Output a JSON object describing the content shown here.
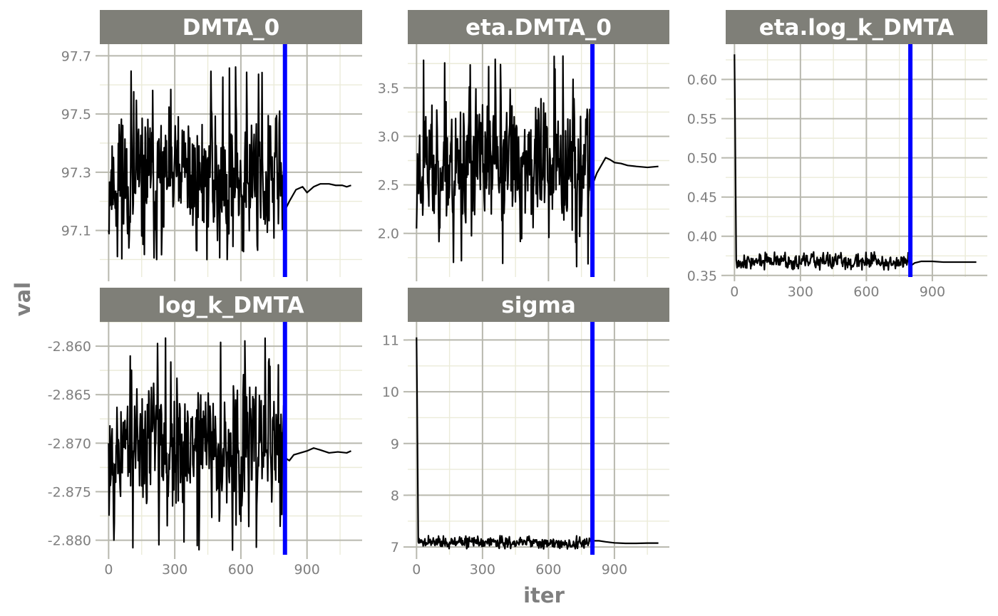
{
  "chart_data": {
    "type": "line",
    "xlabel": "iter",
    "ylabel": "val",
    "vline": {
      "x": 800,
      "color": "#0000ff"
    },
    "colors": {
      "strip_bg": "#7f7f78",
      "panel_bg": "#ffffff",
      "grid_major": "#b8b8ae",
      "grid_minor": "#ebebd9",
      "line": "#000000"
    },
    "panels": [
      {
        "name": "DMTA_0",
        "xlim": [
          -40,
          1150
        ],
        "ylim": [
          96.94,
          97.74
        ],
        "xticks": [
          0,
          300,
          600,
          900
        ],
        "xtick_labels": [],
        "yticks": [
          97.1,
          97.3,
          97.5,
          97.7
        ],
        "ytick_labels": [
          "97.1",
          "97.3",
          "97.5",
          "97.7"
        ],
        "noisy": {
          "start": 97.1,
          "mean": 97.28,
          "sd": 0.11,
          "lo": 97.0,
          "hi": 97.67,
          "end": 800,
          "seed": 11
        },
        "tail": [
          [
            800,
            97.17
          ],
          [
            820,
            97.2
          ],
          [
            850,
            97.24
          ],
          [
            880,
            97.25
          ],
          [
            900,
            97.23
          ],
          [
            930,
            97.25
          ],
          [
            960,
            97.26
          ],
          [
            1000,
            97.26
          ],
          [
            1030,
            97.255
          ],
          [
            1060,
            97.255
          ],
          [
            1080,
            97.25
          ],
          [
            1100,
            97.255
          ]
        ]
      },
      {
        "name": "eta.DMTA_0",
        "xlim": [
          -40,
          1150
        ],
        "ylim": [
          1.55,
          3.95
        ],
        "xticks": [
          0,
          300,
          600,
          900
        ],
        "xtick_labels": [],
        "yticks": [
          2.0,
          2.5,
          3.0,
          3.5
        ],
        "ytick_labels": [
          "2.0",
          "2.5",
          "3.0",
          "3.5"
        ],
        "noisy": {
          "start": 2.05,
          "mean": 2.72,
          "sd": 0.32,
          "lo": 1.62,
          "hi": 3.83,
          "end": 800,
          "seed": 23
        },
        "tail": [
          [
            800,
            2.5
          ],
          [
            820,
            2.62
          ],
          [
            840,
            2.7
          ],
          [
            860,
            2.78
          ],
          [
            880,
            2.76
          ],
          [
            900,
            2.73
          ],
          [
            930,
            2.72
          ],
          [
            960,
            2.7
          ],
          [
            1000,
            2.69
          ],
          [
            1050,
            2.68
          ],
          [
            1100,
            2.69
          ]
        ]
      },
      {
        "name": "eta.log_k_DMTA",
        "xlim": [
          -40,
          1150
        ],
        "ylim": [
          0.348,
          0.645
        ],
        "xticks": [
          0,
          300,
          600,
          900
        ],
        "xtick_labels": [
          "0",
          "300",
          "600",
          "900"
        ],
        "yticks": [
          0.35,
          0.4,
          0.45,
          0.5,
          0.55,
          0.6
        ],
        "ytick_labels": [
          "0.35",
          "0.40",
          "0.45",
          "0.50",
          "0.55",
          "0.60"
        ],
        "noisy": {
          "start": 0.632,
          "drop_to": 0.37,
          "drop_len": 8,
          "mean": 0.368,
          "sd": 0.004,
          "lo": 0.357,
          "hi": 0.38,
          "end": 800,
          "seed": 37
        },
        "tail": [
          [
            800,
            0.362
          ],
          [
            820,
            0.366
          ],
          [
            850,
            0.368
          ],
          [
            900,
            0.368
          ],
          [
            950,
            0.367
          ],
          [
            1000,
            0.367
          ],
          [
            1050,
            0.367
          ],
          [
            1100,
            0.367
          ]
        ]
      },
      {
        "name": "log_k_DMTA",
        "xlim": [
          -40,
          1150
        ],
        "ylim": [
          -2.8815,
          -2.8575
        ],
        "xticks": [
          0,
          300,
          600,
          900
        ],
        "xtick_labels": [
          "0",
          "300",
          "600",
          "900"
        ],
        "yticks": [
          -2.88,
          -2.875,
          -2.87,
          -2.865,
          -2.86
        ],
        "ytick_labels": [
          "-2.880",
          "-2.875",
          "-2.870",
          "-2.865",
          "-2.860"
        ],
        "noisy": {
          "start": -2.87,
          "mean": -2.8702,
          "sd": 0.0033,
          "lo": -2.8812,
          "hi": -2.859,
          "end": 800,
          "seed": 53
        },
        "tail": [
          [
            800,
            -2.8715
          ],
          [
            820,
            -2.8718
          ],
          [
            840,
            -2.8712
          ],
          [
            870,
            -2.871
          ],
          [
            900,
            -2.8708
          ],
          [
            930,
            -2.8705
          ],
          [
            960,
            -2.8707
          ],
          [
            1000,
            -2.871
          ],
          [
            1040,
            -2.8709
          ],
          [
            1080,
            -2.871
          ],
          [
            1100,
            -2.8708
          ]
        ]
      },
      {
        "name": "sigma",
        "xlim": [
          -40,
          1150
        ],
        "ylim": [
          6.85,
          11.35
        ],
        "xticks": [
          0,
          300,
          600,
          900
        ],
        "xtick_labels": [
          "0",
          "300",
          "600",
          "900"
        ],
        "yticks": [
          7,
          8,
          9,
          10,
          11
        ],
        "ytick_labels": [
          "7",
          "8",
          "9",
          "10",
          "11"
        ],
        "noisy": {
          "start": 11.05,
          "drop_to": 7.1,
          "drop_len": 8,
          "mean": 7.08,
          "sd": 0.045,
          "lo": 6.96,
          "hi": 7.22,
          "end": 800,
          "seed": 71
        },
        "tail": [
          [
            800,
            7.12
          ],
          [
            830,
            7.12
          ],
          [
            860,
            7.1
          ],
          [
            900,
            7.08
          ],
          [
            950,
            7.07
          ],
          [
            1000,
            7.07
          ],
          [
            1050,
            7.075
          ],
          [
            1100,
            7.075
          ]
        ]
      }
    ]
  }
}
